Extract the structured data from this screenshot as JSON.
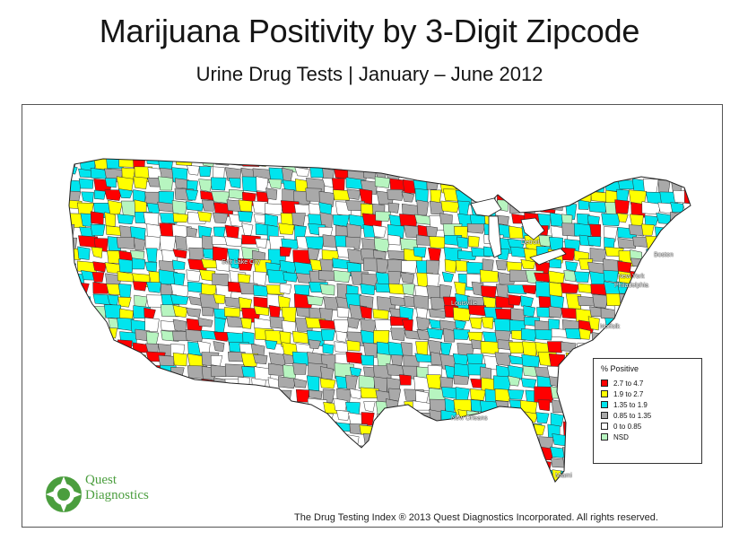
{
  "title": "Marijuana Positivity by 3-Digit Zipcode",
  "subtitle": "Urine Drug Tests | January – June 2012",
  "legend": {
    "title": "% Positive",
    "items": [
      {
        "label": "2.7   to 4.7",
        "color": "#ff0000"
      },
      {
        "label": "1.9   to 2.7",
        "color": "#ffff00"
      },
      {
        "label": "1.35 to 1.9",
        "color": "#00e5ee"
      },
      {
        "label": "0.85 to 1.35",
        "color": "#a9a9a9"
      },
      {
        "label": "0      to 0.85",
        "color": "#ffffff"
      },
      {
        "label": "NSD",
        "color": "#b7f5c0"
      }
    ]
  },
  "cities": [
    "Detroit",
    "Boston",
    "New York",
    "Philadelphia",
    "Norfolk",
    "Salt Lake City",
    "Louisville",
    "New Orleans",
    "Miami"
  ],
  "logo": {
    "line1": "Quest",
    "line2": "Diagnostics",
    "mark": "®",
    "icon": "quest-logo-icon"
  },
  "footer": "The Drug Testing Index ® 2013 Quest Diagnostics Incorporated. All rights reserved.",
  "colors": {
    "red": "#ff0000",
    "yellow": "#ffff00",
    "cyan": "#00e5ee",
    "gray": "#a9a9a9",
    "white": "#ffffff",
    "green": "#b7f5c0"
  }
}
